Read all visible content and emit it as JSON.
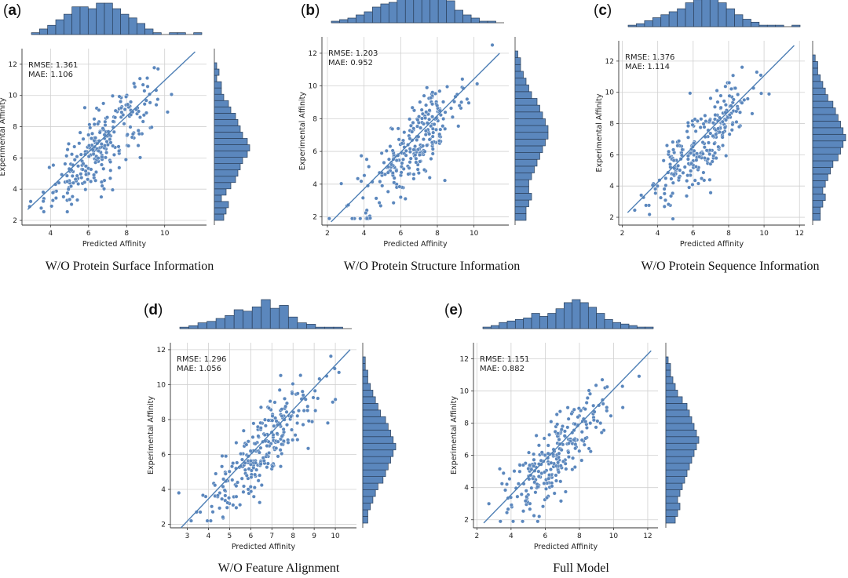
{
  "colors": {
    "fill": "#5b87bd",
    "edge": "#2a3f5a",
    "line": "#4e7fb5",
    "grid": "#d0d0d0"
  },
  "chart_data": [
    {
      "type": "scatter",
      "label_open": "(",
      "letter": "a",
      "label_close": ")",
      "caption": "W/O Protein Surface Information",
      "xlabel": "Predicted Affinity",
      "ylabel": "Experimental Affinity",
      "xlim": [
        2.5,
        12.2
      ],
      "ylim": [
        1.7,
        13.0
      ],
      "xticks": [
        4,
        6,
        8,
        10
      ],
      "yticks": [
        2,
        4,
        6,
        8,
        10,
        12
      ],
      "rmse_label": "RMSE: 1.361",
      "mae_label": "MAE: 1.106",
      "fit": [
        [
          2.8,
          2.7
        ],
        [
          11.6,
          12.8
        ]
      ],
      "top_hist": [
        1,
        3,
        5,
        8,
        11,
        15,
        15,
        14,
        17,
        17,
        14,
        11,
        9,
        6,
        3,
        1,
        0,
        1,
        1,
        0,
        1
      ],
      "right_hist": [
        4,
        5,
        6,
        3,
        5,
        7,
        9,
        10,
        11,
        12,
        14,
        15,
        14,
        12,
        11,
        10,
        9,
        7,
        6,
        4,
        3,
        3,
        1,
        2,
        1
      ]
    },
    {
      "type": "scatter",
      "label_open": "(",
      "letter": "b",
      "label_close": ")",
      "caption": "W/O Protein Structure Information",
      "xlabel": "Predicted Affinity",
      "ylabel": "Experimental Affinity",
      "xlim": [
        1.7,
        11.9
      ],
      "ylim": [
        1.5,
        13.0
      ],
      "xticks": [
        2,
        4,
        6,
        8,
        10
      ],
      "yticks": [
        2,
        4,
        6,
        8,
        10,
        12
      ],
      "rmse_label": "RMSE: 1.203",
      "mae_label": "MAE: 0.952",
      "fit": [
        [
          2.2,
          1.7
        ],
        [
          11.4,
          12.0
        ]
      ],
      "top_hist": [
        1,
        2,
        3,
        5,
        7,
        10,
        12,
        13,
        15,
        18,
        18,
        20,
        20,
        17,
        14,
        8,
        5,
        3,
        1,
        1,
        0
      ],
      "right_hist": [
        4,
        4,
        5,
        6,
        5,
        5,
        6,
        7,
        8,
        9,
        10,
        11,
        12,
        12,
        11,
        10,
        9,
        8,
        6,
        5,
        4,
        3,
        2,
        2,
        1
      ]
    },
    {
      "type": "scatter",
      "label_open": "(",
      "letter": "c",
      "label_close": ")",
      "caption": "W/O Protein Sequence Information",
      "xlabel": "Predicted Affinity",
      "ylabel": "Experimental Affinity",
      "xlim": [
        1.8,
        12.3
      ],
      "ylim": [
        1.5,
        13.3
      ],
      "xticks": [
        2,
        4,
        6,
        8,
        10,
        12
      ],
      "yticks": [
        2,
        4,
        6,
        8,
        10,
        12
      ],
      "rmse_label": "RMSE: 1.376",
      "mae_label": "MAE: 1.114",
      "fit": [
        [
          2.3,
          2.3
        ],
        [
          11.7,
          13.0
        ]
      ],
      "top_hist": [
        1,
        2,
        4,
        6,
        8,
        10,
        12,
        16,
        18,
        21,
        19,
        16,
        12,
        8,
        5,
        3,
        1,
        1,
        1,
        0,
        1
      ],
      "right_hist": [
        3,
        3,
        4,
        5,
        4,
        5,
        6,
        7,
        8,
        10,
        11,
        12,
        13,
        12,
        11,
        10,
        9,
        8,
        6,
        5,
        4,
        3,
        2,
        2,
        1
      ]
    },
    {
      "type": "scatter",
      "label_open": "(",
      "letter": "d",
      "label_close": ")",
      "caption": "W/O Feature Alignment",
      "xlabel": "Predicted Affinity",
      "ylabel": "Experimental Affinity",
      "xlim": [
        2.2,
        11.0
      ],
      "ylim": [
        1.8,
        12.4
      ],
      "xticks": [
        3,
        4,
        5,
        6,
        7,
        8,
        9,
        10
      ],
      "yticks": [
        2,
        4,
        6,
        8,
        10,
        12
      ],
      "rmse_label": "RMSE: 1.296",
      "mae_label": "MAE: 1.056",
      "fit": [
        [
          2.7,
          1.8
        ],
        [
          10.7,
          12.0
        ]
      ],
      "top_hist": [
        1,
        2,
        4,
        5,
        7,
        9,
        13,
        12,
        15,
        20,
        14,
        16,
        8,
        4,
        3,
        1,
        1,
        1,
        0
      ],
      "right_hist": [
        2,
        2,
        3,
        4,
        5,
        6,
        8,
        9,
        10,
        11,
        12,
        13,
        12,
        11,
        10,
        9,
        7,
        6,
        5,
        4,
        3,
        2,
        2,
        1,
        1
      ]
    },
    {
      "type": "scatter",
      "label_open": "(",
      "letter": "e",
      "label_close": ")",
      "caption": "Full Model",
      "xlabel": "Predicted Affinity",
      "ylabel": "Experimental Affinity",
      "xlim": [
        1.8,
        12.6
      ],
      "ylim": [
        1.5,
        13.0
      ],
      "xticks": [
        2,
        4,
        6,
        8,
        10,
        12
      ],
      "yticks": [
        2,
        4,
        6,
        8,
        10,
        12
      ],
      "rmse_label": "RMSE: 1.151",
      "mae_label": "MAE: 0.882",
      "fit": [
        [
          2.4,
          1.8
        ],
        [
          12.2,
          12.5
        ]
      ],
      "top_hist": [
        1,
        2,
        4,
        5,
        6,
        7,
        10,
        8,
        10,
        13,
        17,
        19,
        17,
        14,
        10,
        6,
        4,
        3,
        2,
        1,
        1
      ],
      "right_hist": [
        4,
        5,
        6,
        5,
        6,
        7,
        8,
        9,
        10,
        11,
        12,
        13,
        14,
        13,
        12,
        11,
        10,
        9,
        7,
        5,
        4,
        3,
        2,
        2,
        1
      ]
    }
  ]
}
